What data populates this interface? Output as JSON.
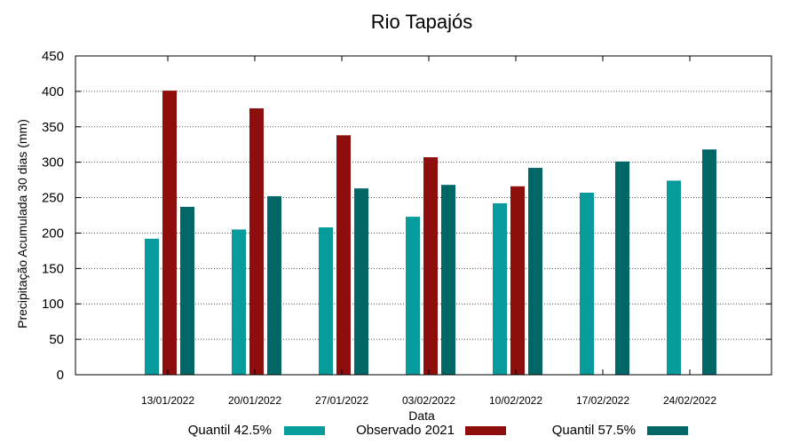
{
  "chart_data": {
    "type": "bar",
    "title": "Rio Tapajós",
    "xlabel": "Data",
    "ylabel": "Precipitação Acumulada 30 dias (mm)",
    "ylim": [
      0,
      450
    ],
    "yticks": [
      0,
      50,
      100,
      150,
      200,
      250,
      300,
      350,
      400,
      450
    ],
    "grid": "horizontal dotted",
    "legend_position": "bottom",
    "categories": [
      "13/01/2022",
      "20/01/2022",
      "27/01/2022",
      "03/02/2022",
      "10/02/2022",
      "17/02/2022",
      "24/02/2022"
    ],
    "series": [
      {
        "name": "Quantil 42.5%",
        "color": "#079b9b",
        "values": [
          192,
          205,
          208,
          223,
          242,
          257,
          274
        ]
      },
      {
        "name": "Observado 2021",
        "color": "#8e0e0e",
        "values": [
          401,
          376,
          338,
          307,
          266,
          null,
          null
        ]
      },
      {
        "name": "Quantil 57.5%",
        "color": "#006666",
        "values": [
          237,
          252,
          263,
          268,
          292,
          301,
          318
        ]
      }
    ]
  }
}
